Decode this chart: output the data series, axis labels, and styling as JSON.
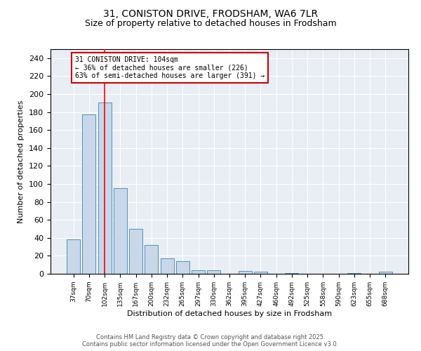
{
  "title": "31, CONISTON DRIVE, FRODSHAM, WA6 7LR",
  "subtitle": "Size of property relative to detached houses in Frodsham",
  "xlabel": "Distribution of detached houses by size in Frodsham",
  "ylabel": "Number of detached properties",
  "bin_labels": [
    "37sqm",
    "70sqm",
    "102sqm",
    "135sqm",
    "167sqm",
    "200sqm",
    "232sqm",
    "265sqm",
    "297sqm",
    "330sqm",
    "362sqm",
    "395sqm",
    "427sqm",
    "460sqm",
    "492sqm",
    "525sqm",
    "558sqm",
    "590sqm",
    "623sqm",
    "655sqm",
    "688sqm"
  ],
  "bar_heights": [
    38,
    177,
    191,
    95,
    50,
    32,
    17,
    14,
    4,
    4,
    0,
    3,
    2,
    0,
    1,
    0,
    0,
    0,
    1,
    0,
    2
  ],
  "bar_color": "#c8d8e8",
  "bar_edge_color": "#5090c0",
  "red_line_index": 2,
  "annotation_text": "31 CONISTON DRIVE: 104sqm\n← 36% of detached houses are smaller (226)\n63% of semi-detached houses are larger (391) →",
  "annotation_box_color": "#ffffff",
  "annotation_box_edge_color": "#cc0000",
  "ylim": [
    0,
    250
  ],
  "yticks": [
    0,
    20,
    40,
    60,
    80,
    100,
    120,
    140,
    160,
    180,
    200,
    220,
    240
  ],
  "background_color": "#e8eef4",
  "footer_line1": "Contains HM Land Registry data © Crown copyright and database right 2025.",
  "footer_line2": "Contains public sector information licensed under the Open Government Licence v3.0.",
  "title_fontsize": 10,
  "subtitle_fontsize": 9,
  "annotation_fontsize": 7,
  "axis_label_fontsize": 8,
  "tick_fontsize": 6.5,
  "ytick_fontsize": 8
}
